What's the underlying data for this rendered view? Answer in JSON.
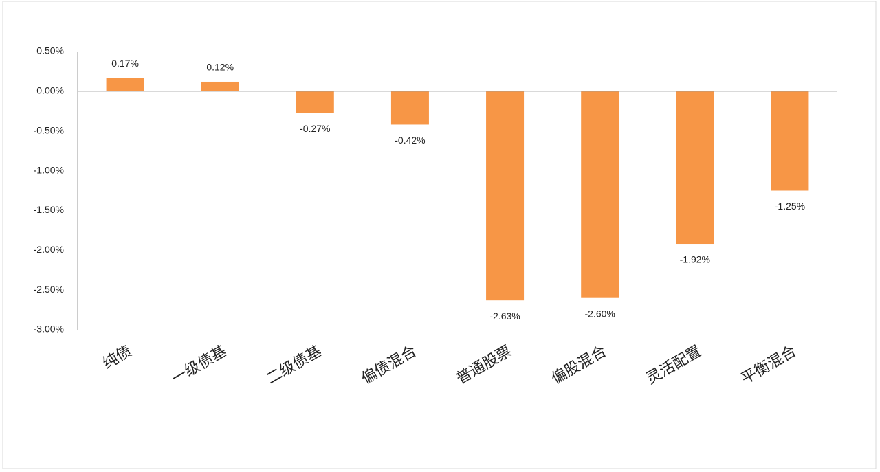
{
  "chart_data": {
    "type": "bar",
    "categories": [
      "纯债",
      "一级债基",
      "二级债基",
      "偏债混合",
      "普通股票",
      "偏股混合",
      "灵活配置",
      "平衡混合"
    ],
    "values": [
      0.17,
      0.12,
      -0.27,
      -0.42,
      -2.63,
      -2.6,
      -1.92,
      -1.25
    ],
    "value_labels": [
      "0.17%",
      "0.12%",
      "-0.27%",
      "-0.42%",
      "-2.63%",
      "-2.60%",
      "-1.92%",
      "-1.25%"
    ],
    "color": "#f79646",
    "ylim": [
      -3,
      0.5
    ],
    "yticks": [
      {
        "value": 0.5,
        "label": "0.50%"
      },
      {
        "value": 0,
        "label": "0.00%"
      },
      {
        "value": -0.5,
        "label": "-0.50%"
      },
      {
        "value": -1,
        "label": "-1.00%"
      },
      {
        "value": -1.5,
        "label": "-1.50%"
      },
      {
        "value": -2,
        "label": "-2.00%"
      },
      {
        "value": -2.5,
        "label": "-2.50%"
      },
      {
        "value": -3,
        "label": "-3.00%"
      }
    ],
    "grid": false
  }
}
